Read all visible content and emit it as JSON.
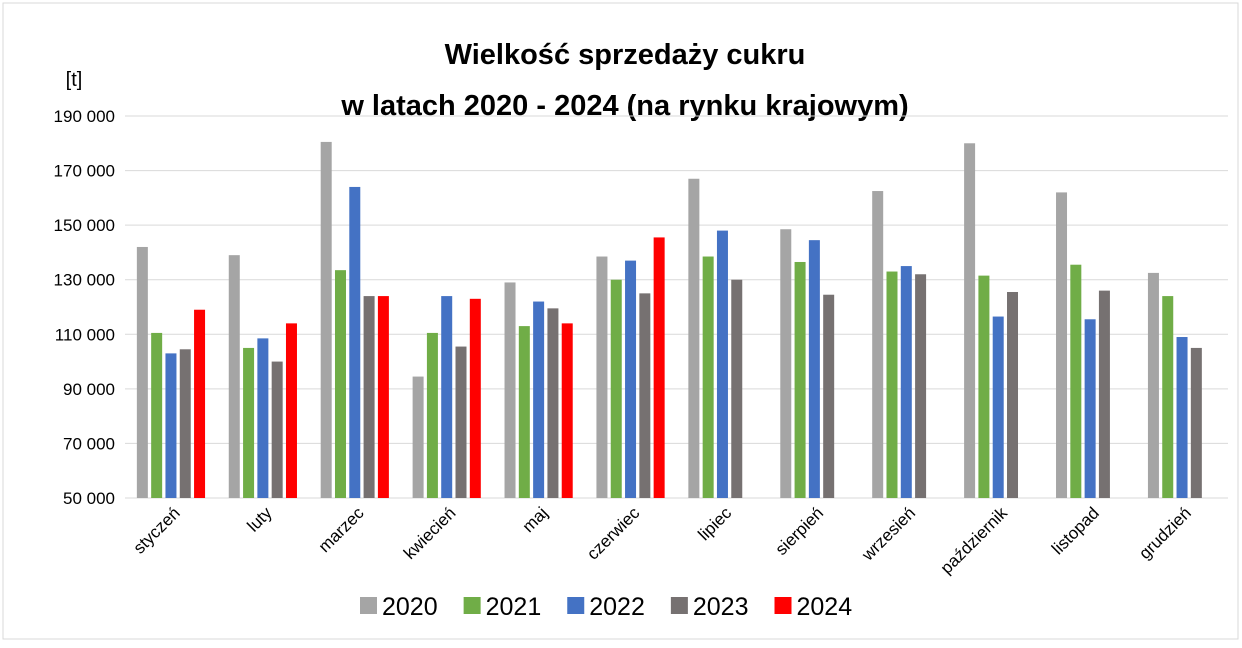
{
  "chart_data": {
    "type": "bar",
    "title": "Wielkość sprzedaży cukru",
    "subtitle": "w latach 2020 - 2024 (na rynku krajowym)",
    "y_label": "[t]",
    "categories": [
      "styczeń",
      "luty",
      "marzec",
      "kwiecień",
      "maj",
      "czerwiec",
      "lipiec",
      "sierpień",
      "wrzesień",
      "październik",
      "listopad",
      "grudzień"
    ],
    "series": [
      {
        "name": "2020",
        "color": "#a5a5a5",
        "values": [
          142000,
          139000,
          180500,
          94500,
          129000,
          138500,
          167000,
          148500,
          162500,
          180000,
          162000,
          132500
        ]
      },
      {
        "name": "2021",
        "color": "#70ad47",
        "values": [
          110500,
          105000,
          133500,
          110500,
          113000,
          130000,
          138500,
          136500,
          133000,
          131500,
          135500,
          124000
        ]
      },
      {
        "name": "2022",
        "color": "#4472c4",
        "values": [
          103000,
          108500,
          164000,
          124000,
          122000,
          137000,
          148000,
          144500,
          135000,
          116500,
          115500,
          109000
        ]
      },
      {
        "name": "2023",
        "color": "#767171",
        "values": [
          104500,
          100000,
          124000,
          105500,
          119500,
          125000,
          130000,
          124500,
          132000,
          125500,
          126000,
          105000
        ]
      },
      {
        "name": "2024",
        "color": "#ff0000",
        "values": [
          119000,
          114000,
          124000,
          123000,
          114000,
          145500,
          null,
          null,
          null,
          null,
          null,
          null
        ]
      }
    ],
    "ylim": [
      50000,
      190000
    ],
    "yticks": [
      {
        "value": 50000,
        "label": "50 000"
      },
      {
        "value": 70000,
        "label": "70 000"
      },
      {
        "value": 90000,
        "label": "90 000"
      },
      {
        "value": 110000,
        "label": "110 000"
      },
      {
        "value": 130000,
        "label": "130 000"
      },
      {
        "value": 150000,
        "label": "150 000"
      },
      {
        "value": 170000,
        "label": "170 000"
      },
      {
        "value": 190000,
        "label": "190 000"
      }
    ],
    "grid": true,
    "legend": "bottom"
  }
}
